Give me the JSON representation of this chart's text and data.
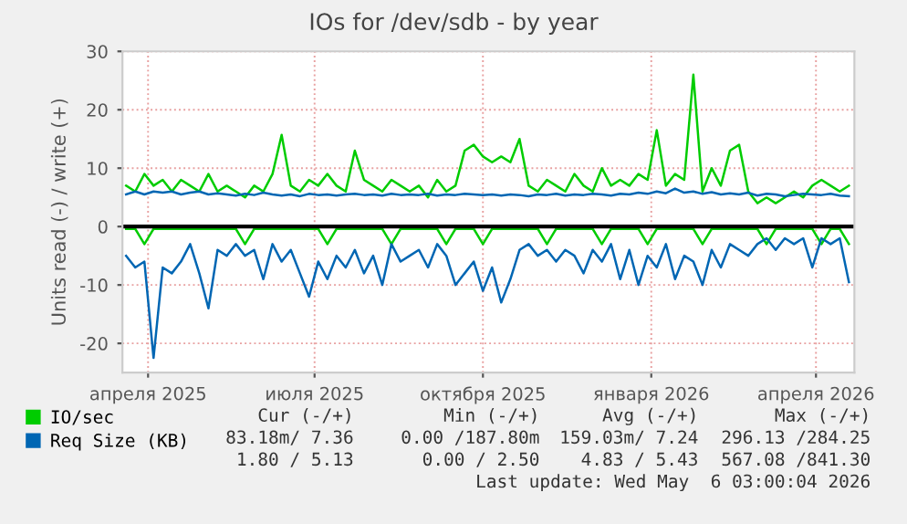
{
  "chart_data": {
    "type": "line",
    "title": "IOs for /dev/sdb - by year",
    "ylabel": "Units read (-) / write (+)",
    "x": [
      "2025-04-03",
      "2025-04-08",
      "2025-04-13",
      "2025-04-18",
      "2025-04-23",
      "2025-04-28",
      "2025-05-03",
      "2025-05-08",
      "2025-05-13",
      "2025-05-18",
      "2025-05-23",
      "2025-05-28",
      "2025-06-02",
      "2025-06-07",
      "2025-06-12",
      "2025-06-17",
      "2025-06-22",
      "2025-06-27",
      "2025-07-02",
      "2025-07-07",
      "2025-07-12",
      "2025-07-17",
      "2025-07-22",
      "2025-07-27",
      "2025-08-01",
      "2025-08-06",
      "2025-08-11",
      "2025-08-16",
      "2025-08-21",
      "2025-08-26",
      "2025-08-31",
      "2025-09-05",
      "2025-09-10",
      "2025-09-15",
      "2025-09-20",
      "2025-09-25",
      "2025-09-30",
      "2025-10-05",
      "2025-10-10",
      "2025-10-15",
      "2025-10-20",
      "2025-10-25",
      "2025-10-30",
      "2025-11-04",
      "2025-11-09",
      "2025-11-14",
      "2025-11-19",
      "2025-11-24",
      "2025-11-29",
      "2025-12-04",
      "2025-12-09",
      "2025-12-14",
      "2025-12-19",
      "2025-12-24",
      "2025-12-29",
      "2026-01-03",
      "2026-01-08",
      "2026-01-13",
      "2026-01-18",
      "2026-01-23",
      "2026-01-28",
      "2026-02-02",
      "2026-02-07",
      "2026-02-12",
      "2026-02-17",
      "2026-02-22",
      "2026-02-27",
      "2026-03-04",
      "2026-03-09",
      "2026-03-14",
      "2026-03-19",
      "2026-03-24",
      "2026-03-29",
      "2026-04-03",
      "2026-04-08",
      "2026-04-13",
      "2026-04-18",
      "2026-04-23",
      "2026-04-28",
      "2026-05-03"
    ],
    "series": [
      {
        "name": "IO/sec",
        "color": "#00cc00",
        "values": [
          7,
          6,
          9,
          7,
          8,
          6,
          8,
          7,
          6,
          9,
          6,
          7,
          6,
          5,
          7,
          6,
          9,
          15.7,
          7,
          6,
          8,
          7,
          9,
          7,
          6,
          13,
          8,
          7,
          6,
          8,
          7,
          6,
          7,
          5,
          8,
          6,
          7,
          13,
          14,
          12,
          11,
          12,
          11,
          15,
          7,
          6,
          8,
          7,
          6,
          9,
          7,
          6,
          10,
          7,
          8,
          7,
          9,
          8,
          16.5,
          7,
          9,
          8,
          26,
          6,
          10,
          7,
          13,
          14,
          6,
          4,
          5,
          4,
          5,
          6,
          5,
          7,
          8,
          7,
          6,
          7
        ]
      },
      {
        "color": "#00cc00",
        "values": [
          -0.4,
          -0.4,
          -3,
          -0.4,
          -0.4,
          -0.4,
          -0.4,
          -0.4,
          -0.4,
          -0.4,
          -0.4,
          -0.4,
          -0.4,
          -3,
          -0.4,
          -0.4,
          -0.4,
          -0.4,
          -0.4,
          -0.4,
          -0.4,
          -0.4,
          -3,
          -0.4,
          -0.4,
          -0.4,
          -0.4,
          -0.4,
          -0.4,
          -3,
          -0.4,
          -0.4,
          -0.4,
          -0.4,
          -0.4,
          -3,
          -0.4,
          -0.4,
          -0.4,
          -3,
          -0.4,
          -0.4,
          -0.4,
          -0.4,
          -0.4,
          -0.4,
          -3,
          -0.4,
          -0.4,
          -0.4,
          -0.4,
          -0.4,
          -3,
          -0.4,
          -0.4,
          -0.4,
          -0.4,
          -3,
          -0.4,
          -0.4,
          -0.4,
          -0.4,
          -0.4,
          -3,
          -0.4,
          -0.4,
          -0.4,
          -0.4,
          -0.4,
          -0.4,
          -3,
          -0.4,
          -0.4,
          -0.4,
          -0.4,
          -0.4,
          -3,
          -0.4,
          -0.4,
          -3
        ]
      },
      {
        "name": "Req Size (KB)",
        "color": "#0066b3",
        "values": [
          5.5,
          6,
          5.5,
          6,
          5.8,
          6,
          5.5,
          5.8,
          6,
          5.5,
          5.7,
          5.5,
          5.3,
          5.6,
          5.4,
          5.8,
          5.5,
          5.3,
          5.5,
          5.2,
          5.6,
          5.4,
          5.5,
          5.3,
          5.5,
          5.6,
          5.4,
          5.5,
          5.3,
          5.6,
          5.4,
          5.5,
          5.4,
          5.6,
          5.3,
          5.5,
          5.4,
          5.6,
          5.5,
          5.4,
          5.5,
          5.3,
          5.5,
          5.4,
          5.2,
          5.5,
          5.4,
          5.6,
          5.3,
          5.5,
          5.4,
          5.6,
          5.5,
          5.3,
          5.6,
          5.5,
          5.8,
          5.6,
          6,
          5.7,
          6.5,
          5.8,
          6,
          5.6,
          5.9,
          5.5,
          5.7,
          5.5,
          5.8,
          5.3,
          5.6,
          5.5,
          5.2,
          5.4,
          5.6,
          5.5,
          5.4,
          5.6,
          5.3,
          5.2
        ]
      },
      {
        "color": "#0066b3",
        "values": [
          -5,
          -7,
          -6,
          -22.5,
          -7,
          -8,
          -6,
          -3,
          -8,
          -14,
          -4,
          -5,
          -3,
          -5,
          -4,
          -9,
          -3,
          -6,
          -4,
          -8,
          -12,
          -6,
          -9,
          -5,
          -7,
          -4,
          -8,
          -5,
          -10,
          -3,
          -6,
          -5,
          -4,
          -7,
          -3,
          -5,
          -10,
          -8,
          -6,
          -11,
          -7,
          -13,
          -9,
          -4,
          -3,
          -5,
          -4,
          -6,
          -4,
          -5,
          -8,
          -4,
          -6,
          -3,
          -9,
          -4,
          -10,
          -5,
          -7,
          -3,
          -9,
          -5,
          -6,
          -10,
          -4,
          -7,
          -3,
          -4,
          -5,
          -3,
          -2,
          -4,
          -2,
          -3,
          -2,
          -7,
          -2,
          -3,
          -2,
          -9.5
        ]
      }
    ],
    "xlim": [
      "2025-04-01",
      "2026-05-06"
    ],
    "xticks": [
      {
        "value": "2025-04-15",
        "label": "апреля 2025"
      },
      {
        "value": "2025-07-15",
        "label": "июля 2025"
      },
      {
        "value": "2025-10-15",
        "label": "октября 2025"
      },
      {
        "value": "2026-01-15",
        "label": "января 2026"
      },
      {
        "value": "2026-04-15",
        "label": "апреля 2026"
      }
    ],
    "ylim": [
      -25,
      30
    ],
    "yticks": [
      -20,
      -10,
      0,
      10,
      20,
      30
    ],
    "ref_lines": [
      {
        "axis": "y",
        "value": 0,
        "color": "#000000"
      }
    ],
    "grid": true,
    "legend": "bottom",
    "annotations": [
      "Cur (-/+)",
      "Min (-/+)",
      "Avg (-/+)",
      "Max (-/+)",
      "83.18m/ 7.36",
      "0.00 /187.80m",
      "159.03m/ 7.24",
      "296.13 /284.25",
      "1.80 / 5.13",
      "0.00 / 2.50",
      "4.83 / 5.43",
      "567.08 /841.30",
      "Last update: Wed May  6 03:00:04 2026"
    ]
  }
}
